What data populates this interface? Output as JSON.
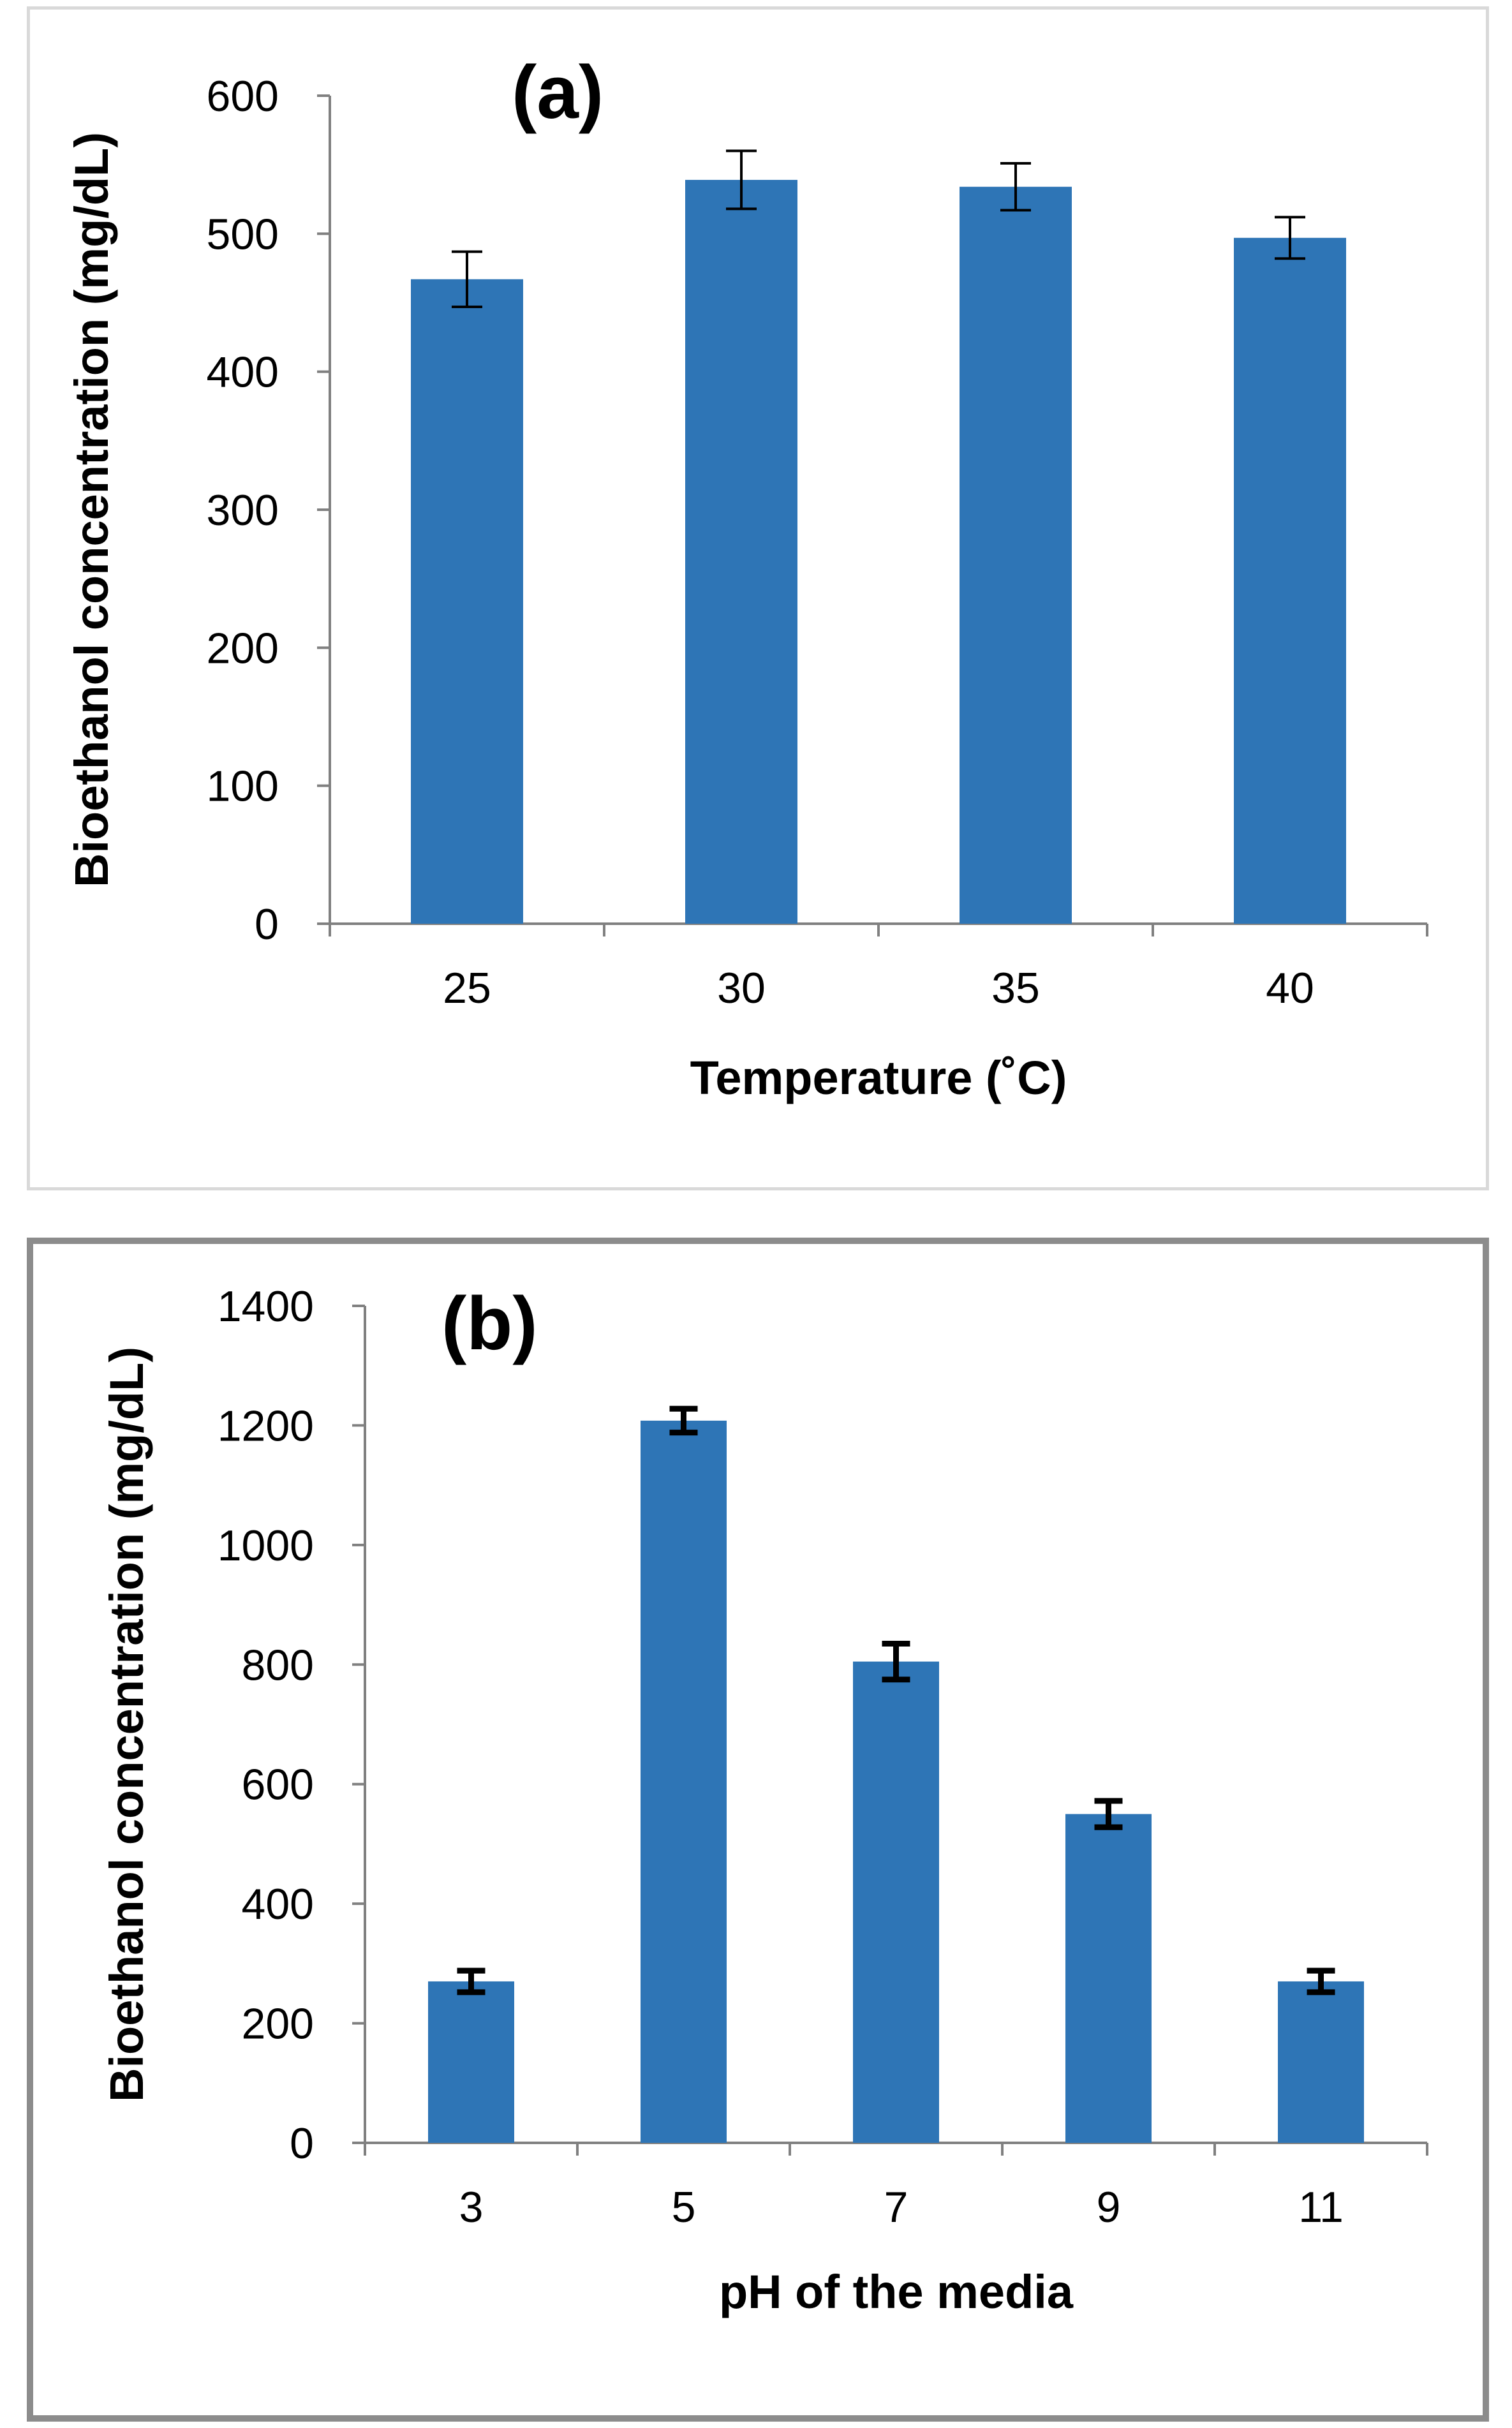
{
  "colors": {
    "bar": "#2e75b6",
    "axis": "#808080",
    "error": "#000000"
  },
  "chart_data": [
    {
      "type": "bar",
      "panel_label": "(a)",
      "categories": [
        "25",
        "30",
        "35",
        "40"
      ],
      "values": [
        467,
        539,
        534,
        497
      ],
      "errors": [
        20,
        21,
        17,
        15
      ],
      "xlabel": "Temperature (˚C)",
      "ylabel": "Bioethanol concentration (mg/dL)",
      "ylim": [
        0,
        600
      ],
      "yticks": [
        "0",
        "100",
        "200",
        "300",
        "400",
        "500",
        "600"
      ],
      "grid": false,
      "legend": "none"
    },
    {
      "type": "bar",
      "panel_label": "(b)",
      "categories": [
        "3",
        "5",
        "7",
        "9",
        "11"
      ],
      "values": [
        270,
        1208,
        805,
        550,
        270
      ],
      "errors": [
        18,
        20,
        30,
        22,
        18
      ],
      "xlabel": "pH of the media",
      "ylabel": "Bioethanol concentration (mg/dL)",
      "ylim": [
        0,
        1400
      ],
      "yticks": [
        "0",
        "200",
        "400",
        "600",
        "800",
        "1000",
        "1200",
        "1400"
      ],
      "grid": false,
      "legend": "none"
    }
  ]
}
